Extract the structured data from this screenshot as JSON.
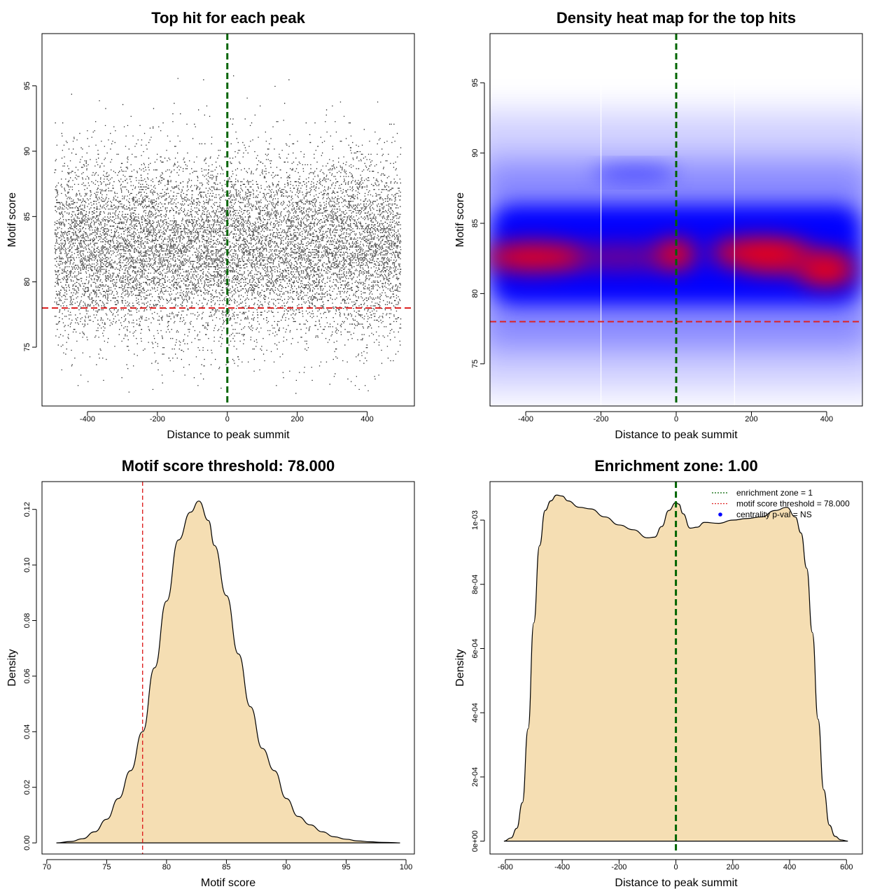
{
  "chart_data": [
    {
      "type": "scatter",
      "title": "Top hit for each peak",
      "xlabel": "Distance to peak summit",
      "ylabel": "Motif score",
      "xlim": [
        -530,
        535
      ],
      "ylim": [
        70.5,
        99
      ],
      "xticks": [
        -400,
        -200,
        0,
        200,
        400
      ],
      "yticks": [
        75,
        80,
        85,
        90,
        95
      ],
      "xtick_labels": [
        "-400",
        "-200",
        "0",
        "200",
        "400"
      ],
      "ytick_labels": [
        "75",
        "80",
        "85",
        "90",
        "95"
      ],
      "point_cloud": {
        "x_range": [
          -495,
          495
        ],
        "score_mean": 82.7,
        "score_sd": 3.4,
        "approx_points": 12000
      },
      "reference_lines": [
        {
          "axis": "x",
          "value": 0,
          "color": "#006400",
          "style": "dashed"
        },
        {
          "axis": "y",
          "value": 78,
          "color": "#dd2222",
          "style": "dashed"
        }
      ],
      "grid": false
    },
    {
      "type": "heatmap",
      "title": "Density heat map for the top hits",
      "xlabel": "Distance to peak summit",
      "ylabel": "Motif score",
      "xlim": [
        -495,
        495
      ],
      "ylim": [
        72,
        98.5
      ],
      "xticks": [
        -400,
        -200,
        0,
        200,
        400
      ],
      "yticks": [
        75,
        80,
        85,
        90,
        95
      ],
      "xtick_labels": [
        "-400",
        "-200",
        "0",
        "200",
        "400"
      ],
      "ytick_labels": [
        "75",
        "80",
        "85",
        "90",
        "95"
      ],
      "color_scale": [
        "#ffffff",
        "#0000ff",
        "#ff0000"
      ],
      "hotspots": [
        {
          "x": -380,
          "y": 82.6,
          "level": "high"
        },
        {
          "x": 0,
          "y": 82.8,
          "level": "high"
        },
        {
          "x": 220,
          "y": 82.9,
          "level": "high"
        },
        {
          "x": 400,
          "y": 81.6,
          "level": "high"
        }
      ],
      "reference_lines": [
        {
          "axis": "x",
          "value": 0,
          "color": "#006400",
          "style": "dashed"
        },
        {
          "axis": "y",
          "value": 78,
          "color": "#dd2222",
          "style": "dashed"
        }
      ]
    },
    {
      "type": "area",
      "title": "Motif score threshold: 78.000",
      "xlabel": "Motif score",
      "ylabel": "Density",
      "xlim": [
        69.6,
        100.7
      ],
      "ylim": [
        -0.004,
        0.13
      ],
      "xticks": [
        70,
        75,
        80,
        85,
        90,
        95,
        100
      ],
      "yticks": [
        0,
        0.02,
        0.04,
        0.06,
        0.08,
        0.1,
        0.12
      ],
      "xtick_labels": [
        "70",
        "75",
        "80",
        "85",
        "90",
        "95",
        "100"
      ],
      "ytick_labels": [
        "0.00",
        "0.02",
        "0.04",
        "0.06",
        "0.08",
        "0.10",
        "0.12"
      ],
      "fill_color": "#f5deb3",
      "x": [
        70.8,
        72,
        73,
        74,
        75,
        76,
        77,
        78,
        79,
        80,
        81,
        82,
        82.7,
        83.5,
        84,
        85,
        86,
        87,
        88,
        89,
        90,
        91,
        92,
        93,
        94,
        95,
        96,
        97,
        98,
        99,
        99.5
      ],
      "y": [
        0,
        0.0005,
        0.0015,
        0.004,
        0.0085,
        0.016,
        0.026,
        0.04,
        0.063,
        0.087,
        0.109,
        0.119,
        0.123,
        0.116,
        0.107,
        0.089,
        0.068,
        0.049,
        0.034,
        0.026,
        0.016,
        0.0095,
        0.0065,
        0.004,
        0.0022,
        0.0013,
        0.0007,
        0.0004,
        0.0002,
        0.0001,
        0
      ],
      "reference_lines": [
        {
          "axis": "x",
          "value": 78,
          "color": "#dd2222",
          "style": "dashed"
        }
      ]
    },
    {
      "type": "area",
      "title": "Enrichment zone: 1.00",
      "xlabel": "Distance to peak summit",
      "ylabel": "Density",
      "xlim": [
        -654,
        656
      ],
      "ylim": [
        -4e-05,
        0.00112
      ],
      "xticks": [
        -600,
        -400,
        -200,
        0,
        200,
        400,
        600
      ],
      "yticks": [
        0,
        0.0002,
        0.0004,
        0.0006,
        0.0008,
        0.001
      ],
      "xtick_labels": [
        "-600",
        "-400",
        "-200",
        "0",
        "200",
        "400",
        "600"
      ],
      "ytick_labels": [
        "0e+00",
        "2e-04",
        "4e-04",
        "6e-04",
        "8e-04",
        "1e-03"
      ],
      "fill_color": "#f5deb3",
      "x": [
        -605,
        -580,
        -560,
        -540,
        -520,
        -500,
        -480,
        -460,
        -440,
        -420,
        -400,
        -380,
        -340,
        -300,
        -250,
        -200,
        -150,
        -100,
        -75,
        -50,
        -25,
        0,
        10,
        25,
        50,
        75,
        100,
        150,
        200,
        250,
        300,
        350,
        390,
        420,
        440,
        460,
        480,
        500,
        520,
        540,
        560,
        580,
        605
      ],
      "y": [
        0,
        1e-05,
        4e-05,
        0.00012,
        0.00035,
        0.00068,
        0.00092,
        0.00103,
        0.00106,
        0.001078,
        0.001075,
        0.00106,
        0.00104,
        0.001035,
        0.00101,
        0.000985,
        0.00097,
        0.000945,
        0.000947,
        0.00098,
        0.00103,
        0.001055,
        0.00105,
        0.00102,
        0.000975,
        0.000978,
        0.000993,
        0.00099,
        0.001,
        0.001005,
        0.00101,
        0.00103,
        0.00104,
        0.00101,
        0.00096,
        0.00085,
        0.00065,
        0.00038,
        0.00016,
        5e-05,
        1.5e-05,
        4e-06,
        0
      ],
      "reference_lines": [
        {
          "axis": "x",
          "value": 0,
          "color": "#006400",
          "style": "dashed"
        }
      ],
      "legend": {
        "placement": "top-right",
        "entries": [
          {
            "label": "enrichment zone = 1",
            "color": "#006400",
            "kind": "dotted-line"
          },
          {
            "label": "motif score threshold = 78.000",
            "color": "#dd2222",
            "kind": "dotted-line"
          },
          {
            "label": "centrality p-val = NS",
            "color": "#0000ff",
            "kind": "point"
          }
        ]
      }
    }
  ]
}
